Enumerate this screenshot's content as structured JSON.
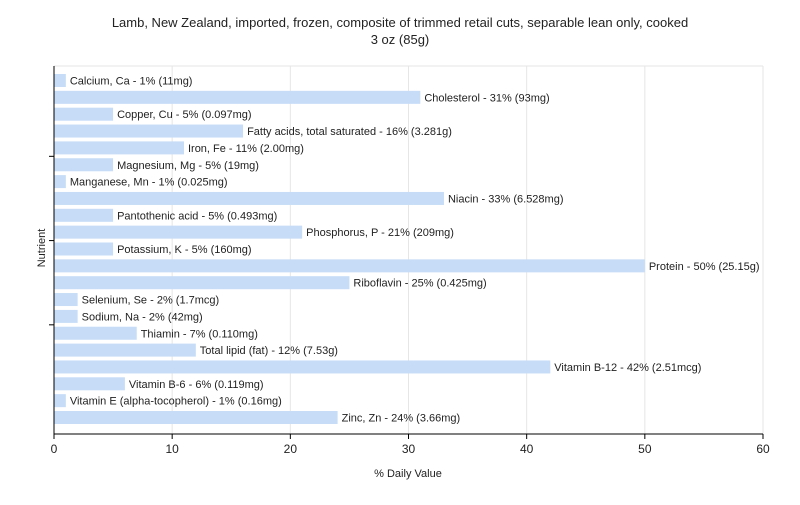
{
  "chart_data": {
    "type": "bar",
    "orientation": "horizontal",
    "title": "Lamb, New Zealand, imported, frozen, composite of trimmed retail cuts, separable lean only, cooked",
    "subtitle": "3 oz (85g)",
    "xlabel": "% Daily Value",
    "ylabel": "Nutrient",
    "xlim": [
      0,
      60
    ],
    "xticks": [
      0,
      10,
      20,
      30,
      40,
      50,
      60
    ],
    "grid": true,
    "bar_color": "#c6dcf7",
    "categories": [
      "Calcium, Ca",
      "Cholesterol",
      "Copper, Cu",
      "Fatty acids, total saturated",
      "Iron, Fe",
      "Magnesium, Mg",
      "Manganese, Mn",
      "Niacin",
      "Pantothenic acid",
      "Phosphorus, P",
      "Potassium, K",
      "Protein",
      "Riboflavin",
      "Selenium, Se",
      "Sodium, Na",
      "Thiamin",
      "Total lipid (fat)",
      "Vitamin B-12",
      "Vitamin B-6",
      "Vitamin E (alpha-tocopherol)",
      "Zinc, Zn"
    ],
    "values": [
      1,
      31,
      5,
      16,
      11,
      5,
      1,
      33,
      5,
      21,
      5,
      50,
      25,
      2,
      2,
      7,
      12,
      42,
      6,
      1,
      24
    ],
    "amounts": [
      "11mg",
      "93mg",
      "0.097mg",
      "3.281g",
      "2.00mg",
      "19mg",
      "0.025mg",
      "6.528mg",
      "0.493mg",
      "209mg",
      "160mg",
      "25.15g",
      "0.425mg",
      "1.7mcg",
      "42mg",
      "0.110mg",
      "7.53g",
      "2.51mcg",
      "0.119mg",
      "0.16mg",
      "3.66mg"
    ],
    "bar_labels": [
      "Calcium, Ca - 1% (11mg)",
      "Cholesterol - 31% (93mg)",
      "Copper, Cu - 5% (0.097mg)",
      "Fatty acids, total saturated - 16% (3.281g)",
      "Iron, Fe - 11% (2.00mg)",
      "Magnesium, Mg - 5% (19mg)",
      "Manganese, Mn - 1% (0.025mg)",
      "Niacin - 33% (6.528mg)",
      "Pantothenic acid - 5% (0.493mg)",
      "Phosphorus, P - 21% (209mg)",
      "Potassium, K - 5% (160mg)",
      "Protein - 50% (25.15g)",
      "Riboflavin - 25% (0.425mg)",
      "Selenium, Se - 2% (1.7mcg)",
      "Sodium, Na - 2% (42mg)",
      "Thiamin - 7% (0.110mg)",
      "Total lipid (fat) - 12% (7.53g)",
      "Vitamin B-12 - 42% (2.51mcg)",
      "Vitamin B-6 - 6% (0.119mg)",
      "Vitamin E (alpha-tocopherol) - 1% (0.16mg)",
      "Zinc, Zn - 24% (3.66mg)"
    ]
  }
}
